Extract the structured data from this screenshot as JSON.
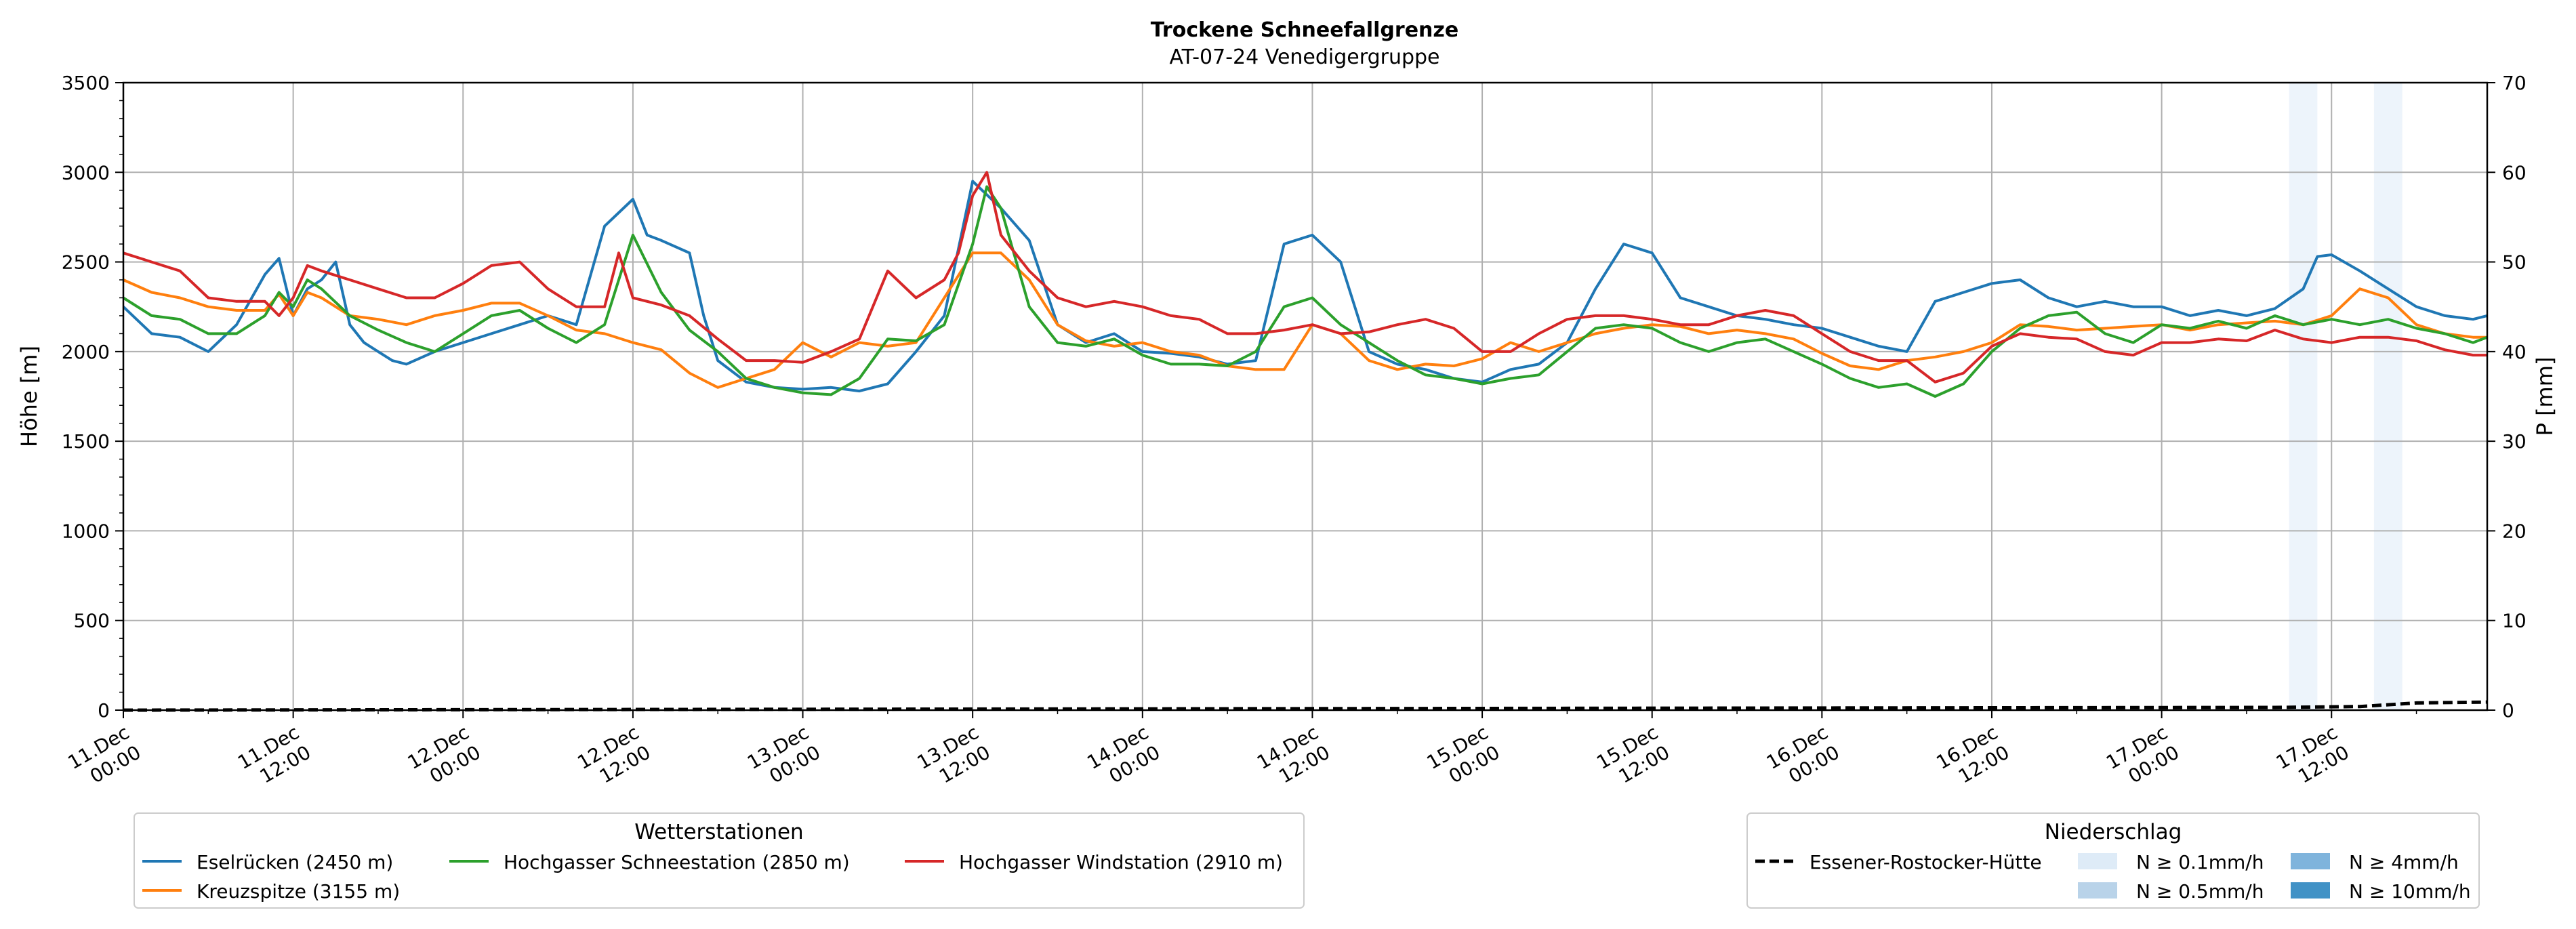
{
  "chart_data": {
    "type": "line",
    "title": "Trockene Schneefallgrenze",
    "subtitle": "AT-07-24 Venedigergruppe",
    "ylabel": "Höhe [m]",
    "y2label": "P [mm]",
    "ylim": [
      0,
      3500
    ],
    "y2lim": [
      0,
      70
    ],
    "yticks": [
      "0",
      "500",
      "1000",
      "1500",
      "2000",
      "2500",
      "3000",
      "3500"
    ],
    "y2ticks": [
      "0",
      "10",
      "20",
      "30",
      "40",
      "50",
      "60",
      "70"
    ],
    "xticks": [
      {
        "h": 0,
        "date": "11.Dec",
        "time": "00:00"
      },
      {
        "h": 12,
        "date": "11.Dec",
        "time": "12:00"
      },
      {
        "h": 24,
        "date": "12.Dec",
        "time": "00:00"
      },
      {
        "h": 36,
        "date": "12.Dec",
        "time": "12:00"
      },
      {
        "h": 48,
        "date": "13.Dec",
        "time": "00:00"
      },
      {
        "h": 60,
        "date": "13.Dec",
        "time": "12:00"
      },
      {
        "h": 72,
        "date": "14.Dec",
        "time": "00:00"
      },
      {
        "h": 84,
        "date": "14.Dec",
        "time": "12:00"
      },
      {
        "h": 96,
        "date": "15.Dec",
        "time": "00:00"
      },
      {
        "h": 108,
        "date": "15.Dec",
        "time": "12:00"
      },
      {
        "h": 120,
        "date": "16.Dec",
        "time": "00:00"
      },
      {
        "h": 132,
        "date": "16.Dec",
        "time": "12:00"
      },
      {
        "h": 144,
        "date": "17.Dec",
        "time": "00:00"
      },
      {
        "h": 156,
        "date": "17.Dec",
        "time": "12:00"
      }
    ],
    "xrange_hours": [
      0,
      167
    ],
    "grid": true,
    "series": [
      {
        "name": "Eselrücken (2450 m)",
        "color": "#1f77b4",
        "x": [
          0,
          2,
          4,
          6,
          8,
          10,
          11,
          12,
          13,
          14,
          15,
          16,
          17,
          18,
          19,
          20,
          22,
          24,
          26,
          28,
          30,
          32,
          34,
          36,
          37,
          38,
          40,
          41,
          42,
          44,
          46,
          48,
          50,
          52,
          54,
          56,
          58,
          60,
          62,
          64,
          66,
          68,
          70,
          72,
          74,
          76,
          78,
          80,
          82,
          84,
          86,
          88,
          90,
          92,
          94,
          96,
          98,
          100,
          102,
          104,
          106,
          108,
          110,
          112,
          114,
          116,
          118,
          120,
          122,
          124,
          126,
          128,
          130,
          132,
          134,
          136,
          138,
          140,
          142,
          144,
          146,
          148,
          150,
          152,
          154,
          155,
          156,
          158,
          160,
          162,
          164,
          166,
          167
        ],
        "y": [
          2250,
          2100,
          2080,
          2000,
          2150,
          2430,
          2520,
          2200,
          2350,
          2400,
          2500,
          2150,
          2050,
          2000,
          1950,
          1930,
          2000,
          2050,
          2100,
          2150,
          2200,
          2150,
          2700,
          2850,
          2650,
          2620,
          2550,
          2200,
          1950,
          1830,
          1800,
          1790,
          1800,
          1780,
          1820,
          2000,
          2200,
          2950,
          2800,
          2620,
          2150,
          2050,
          2100,
          2000,
          1990,
          1970,
          1930,
          1950,
          2600,
          2650,
          2500,
          2000,
          1930,
          1900,
          1850,
          1830,
          1900,
          1930,
          2050,
          2350,
          2600,
          2550,
          2300,
          2250,
          2200,
          2180,
          2150,
          2130,
          2080,
          2030,
          2000,
          2280,
          2330,
          2380,
          2400,
          2300,
          2250,
          2280,
          2250,
          2250,
          2200,
          2230,
          2200,
          2240,
          2350,
          2530,
          2540,
          2450,
          2350,
          2250,
          2200,
          2180,
          2200
        ]
      },
      {
        "name": "Kreuzspitze (3155 m)",
        "color": "#ff7f0e",
        "x": [
          0,
          2,
          4,
          6,
          8,
          10,
          11,
          12,
          13,
          14,
          16,
          18,
          20,
          22,
          24,
          26,
          28,
          30,
          32,
          34,
          36,
          38,
          40,
          42,
          44,
          46,
          48,
          50,
          52,
          54,
          56,
          58,
          60,
          62,
          64,
          66,
          68,
          70,
          72,
          74,
          76,
          78,
          80,
          82,
          84,
          86,
          88,
          90,
          92,
          94,
          96,
          98,
          100,
          102,
          104,
          106,
          108,
          110,
          112,
          114,
          116,
          118,
          120,
          122,
          124,
          126,
          128,
          130,
          132,
          134,
          136,
          138,
          140,
          142,
          144,
          146,
          148,
          150,
          152,
          154,
          156,
          158,
          160,
          162,
          164,
          166,
          167
        ],
        "y": [
          2400,
          2330,
          2300,
          2250,
          2230,
          2230,
          2320,
          2200,
          2330,
          2300,
          2200,
          2180,
          2150,
          2200,
          2230,
          2270,
          2270,
          2200,
          2120,
          2100,
          2050,
          2010,
          1880,
          1800,
          1850,
          1900,
          2050,
          1970,
          2050,
          2030,
          2050,
          2300,
          2550,
          2550,
          2400,
          2150,
          2060,
          2030,
          2050,
          2000,
          1980,
          1920,
          1900,
          1900,
          2150,
          2100,
          1950,
          1900,
          1930,
          1920,
          1960,
          2050,
          2000,
          2050,
          2100,
          2130,
          2150,
          2140,
          2100,
          2120,
          2100,
          2070,
          1990,
          1920,
          1900,
          1950,
          1970,
          2000,
          2050,
          2150,
          2140,
          2120,
          2130,
          2140,
          2150,
          2120,
          2150,
          2160,
          2170,
          2150,
          2200,
          2350,
          2300,
          2150,
          2100,
          2080,
          2080
        ]
      },
      {
        "name": "Hochgasser Schneestation (2850 m)",
        "color": "#2ca02c",
        "x": [
          0,
          2,
          4,
          6,
          8,
          10,
          11,
          12,
          13,
          14,
          16,
          18,
          20,
          22,
          24,
          26,
          28,
          30,
          32,
          34,
          36,
          38,
          40,
          42,
          44,
          46,
          48,
          50,
          52,
          54,
          56,
          58,
          60,
          61,
          62,
          64,
          66,
          68,
          70,
          72,
          74,
          76,
          78,
          80,
          82,
          84,
          86,
          88,
          90,
          92,
          94,
          96,
          98,
          100,
          102,
          104,
          106,
          108,
          110,
          112,
          114,
          116,
          118,
          120,
          122,
          124,
          126,
          128,
          130,
          132,
          134,
          136,
          138,
          140,
          142,
          144,
          146,
          148,
          150,
          152,
          154,
          156,
          158,
          160,
          162,
          164,
          166,
          167
        ],
        "y": [
          2300,
          2200,
          2180,
          2100,
          2100,
          2200,
          2330,
          2250,
          2400,
          2350,
          2200,
          2120,
          2050,
          2000,
          2100,
          2200,
          2230,
          2130,
          2050,
          2150,
          2650,
          2330,
          2120,
          2000,
          1850,
          1800,
          1770,
          1760,
          1850,
          2070,
          2060,
          2150,
          2600,
          2920,
          2800,
          2250,
          2050,
          2030,
          2070,
          1980,
          1930,
          1930,
          1920,
          2000,
          2250,
          2300,
          2150,
          2050,
          1950,
          1870,
          1850,
          1820,
          1850,
          1870,
          2000,
          2130,
          2150,
          2130,
          2050,
          2000,
          2050,
          2070,
          2000,
          1930,
          1850,
          1800,
          1820,
          1750,
          1820,
          2000,
          2130,
          2200,
          2220,
          2100,
          2050,
          2150,
          2130,
          2170,
          2130,
          2200,
          2150,
          2180,
          2150,
          2180,
          2130,
          2100,
          2050,
          2080
        ]
      },
      {
        "name": "Hochgasser Windstation (2910 m)",
        "color": "#d62728",
        "x": [
          0,
          2,
          4,
          6,
          8,
          10,
          11,
          12,
          13,
          14,
          16,
          18,
          20,
          22,
          24,
          26,
          28,
          30,
          32,
          34,
          35,
          36,
          38,
          40,
          42,
          44,
          46,
          48,
          50,
          52,
          54,
          56,
          58,
          59,
          60,
          61,
          62,
          64,
          66,
          68,
          70,
          72,
          74,
          76,
          78,
          80,
          82,
          84,
          86,
          88,
          90,
          92,
          94,
          96,
          98,
          100,
          102,
          104,
          106,
          108,
          110,
          112,
          114,
          116,
          118,
          120,
          122,
          124,
          126,
          128,
          130,
          132,
          134,
          136,
          138,
          140,
          142,
          144,
          146,
          148,
          150,
          152,
          154,
          156,
          158,
          160,
          162,
          164,
          166,
          167
        ],
        "y": [
          2550,
          2500,
          2450,
          2300,
          2280,
          2280,
          2200,
          2300,
          2480,
          2450,
          2400,
          2350,
          2300,
          2300,
          2380,
          2480,
          2500,
          2350,
          2250,
          2250,
          2550,
          2300,
          2260,
          2200,
          2070,
          1950,
          1950,
          1940,
          2000,
          2070,
          2450,
          2300,
          2400,
          2550,
          2870,
          3000,
          2650,
          2450,
          2300,
          2250,
          2280,
          2250,
          2200,
          2180,
          2100,
          2100,
          2120,
          2150,
          2100,
          2110,
          2150,
          2180,
          2130,
          2000,
          2000,
          2100,
          2180,
          2200,
          2200,
          2180,
          2150,
          2150,
          2200,
          2230,
          2200,
          2100,
          2000,
          1950,
          1950,
          1830,
          1880,
          2030,
          2100,
          2080,
          2070,
          2000,
          1980,
          2050,
          2050,
          2070,
          2060,
          2120,
          2070,
          2050,
          2080,
          2080,
          2060,
          2010,
          1980,
          1980
        ]
      }
    ],
    "precip_series": {
      "name": "Essener-Rostocker-Hütte",
      "x": [
        0,
        152,
        158,
        162,
        167
      ],
      "y": [
        0,
        0.3,
        0.4,
        0.8,
        0.9
      ]
    },
    "precip_bars": [
      {
        "start_h": 153,
        "end_h": 155,
        "level": "N ≥ 0.1mm/h"
      },
      {
        "start_h": 159,
        "end_h": 161,
        "level": "N ≥ 0.1mm/h"
      }
    ]
  },
  "legend_stations": {
    "title": "Wetterstationen",
    "items": [
      {
        "label": "Eselrücken (2450 m)",
        "color": "#1f77b4"
      },
      {
        "label": "Hochgasser Schneestation (2850 m)",
        "color": "#2ca02c"
      },
      {
        "label": "Hochgasser Windstation (2910 m)",
        "color": "#d62728"
      },
      {
        "label": "Kreuzspitze (3155 m)",
        "color": "#ff7f0e"
      }
    ]
  },
  "legend_precip": {
    "title": "Niederschlag",
    "line_label": "Essener-Rostocker-Hütte",
    "levels": [
      {
        "label": "N ≥ 0.1mm/h",
        "color": "#deebf7"
      },
      {
        "label": "N ≥ 0.5mm/h",
        "color": "#b9d3e9"
      },
      {
        "label": "N ≥ 4mm/h",
        "color": "#7fb4dc"
      },
      {
        "label": "N ≥ 10mm/h",
        "color": "#4192c6"
      }
    ]
  }
}
